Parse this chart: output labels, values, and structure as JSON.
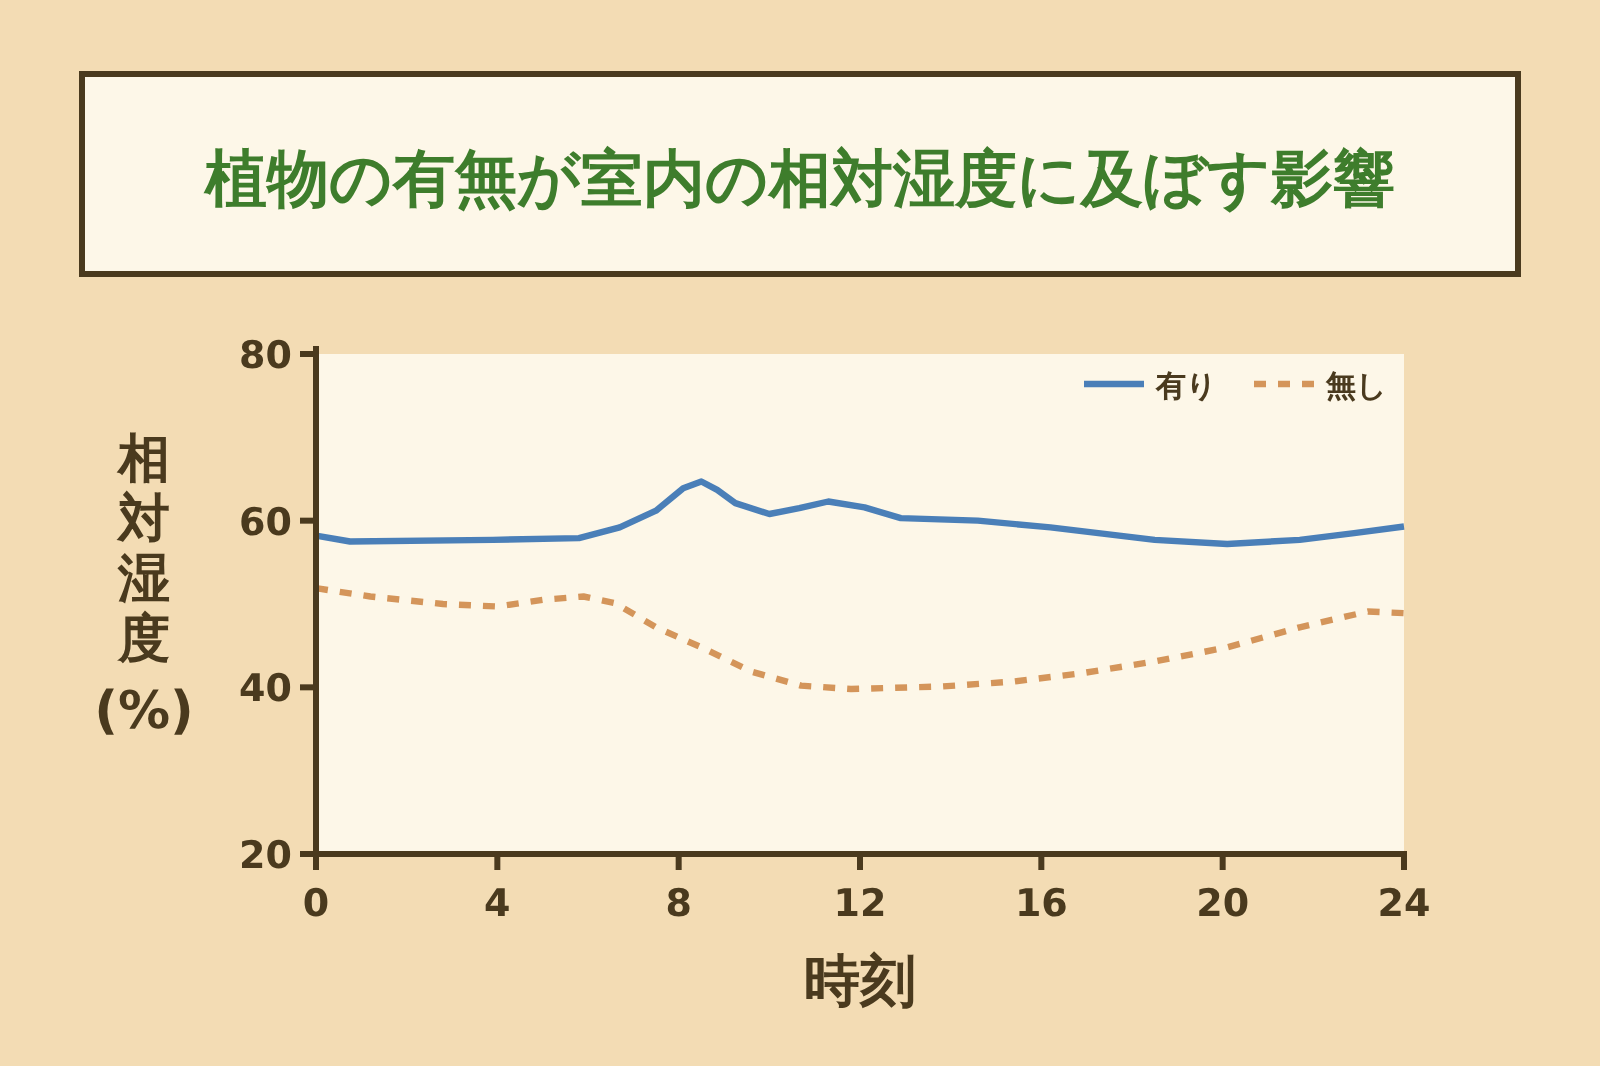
{
  "chart_data": {
    "type": "line",
    "title": "植物の有無が室内の相対湿度に及ぼす影響",
    "xlabel": "時刻",
    "ylabel": "相対湿度(%)",
    "xlim": [
      0,
      24
    ],
    "xticks": [
      0,
      4,
      8,
      12,
      16,
      20,
      24
    ],
    "ylim": [
      20,
      80
    ],
    "yticks": [
      20,
      40,
      60,
      80
    ],
    "legend": "top right",
    "series": [
      {
        "name": "有り",
        "color": "#4a7fb8",
        "line_style": "solid",
        "x": [
          0,
          0.75,
          3.9,
          5.8,
          6.7,
          7.5,
          8.1,
          8.5,
          8.85,
          9.25,
          10.0,
          10.66,
          11.3,
          12.1,
          12.9,
          14.6,
          16.2,
          18.5,
          20.1,
          21.7,
          22.9,
          24
        ],
        "values": [
          58.2,
          57.5,
          57.7,
          57.9,
          59.2,
          61.2,
          63.9,
          64.7,
          63.7,
          62.1,
          60.8,
          61.5,
          62.3,
          61.6,
          60.3,
          60,
          59.2,
          57.7,
          57.2,
          57.7,
          58.5,
          59.3
        ]
      },
      {
        "name": "無し",
        "color": "#d4955a",
        "line_style": "dashed",
        "x": [
          0,
          1.2,
          2.8,
          4,
          5,
          5.9,
          6.6,
          7.5,
          8.5,
          9.6,
          10.7,
          11.8,
          13.8,
          15.4,
          16.9,
          18.5,
          20.1,
          21.7,
          23.2,
          24
        ],
        "values": [
          51.9,
          50.9,
          50,
          49.7,
          50.5,
          50.9,
          50.1,
          47.2,
          44.8,
          41.9,
          40.2,
          39.8,
          40.1,
          40.7,
          41.7,
          43.1,
          44.8,
          47.2,
          49.1,
          48.9
        ]
      }
    ]
  }
}
